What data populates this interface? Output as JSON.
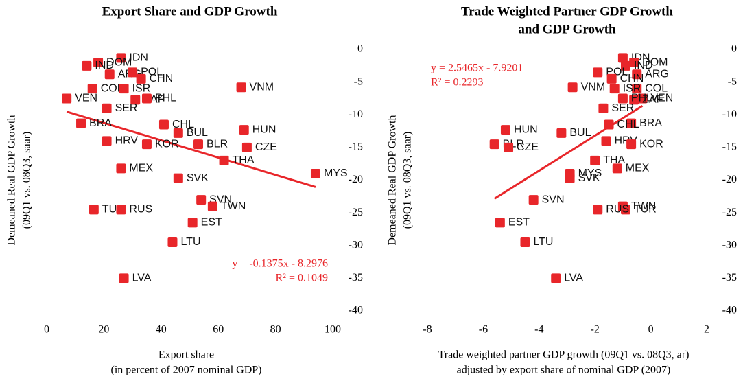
{
  "chart_data": [
    {
      "type": "scatter",
      "title": [
        "Export Share and GDP Growth"
      ],
      "xlabel": [
        "Export share",
        "(in percent of 2007 nominal GDP)"
      ],
      "ylabel": [
        "Demeaned Real GDP Growth",
        "(09Q1 vs. 08Q3, saar)"
      ],
      "annotation": [
        "y = -0.1375x - 8.2976",
        "R² = 0.1049"
      ],
      "color": "#e8262a",
      "trendline": true,
      "xlim": [
        0,
        100
      ],
      "xticks": [
        0,
        20,
        40,
        60,
        80,
        100
      ],
      "ylim": [
        -40,
        0
      ],
      "yticks": [
        0,
        -5,
        -10,
        -15,
        -20,
        -25,
        -30,
        -35,
        -40
      ],
      "labels": [
        "IDN",
        "DOM",
        "IND",
        "ARG",
        "POL",
        "CHN",
        "VEN",
        "COL",
        "ISR",
        "ZAF",
        "PHL",
        "SER",
        "BRA",
        "HRV",
        "KOR",
        "CHL",
        "BUL",
        "BLR",
        "HUN",
        "CZE",
        "VNM",
        "THA",
        "MYS",
        "MEX",
        "SVK",
        "SVN",
        "TWN",
        "TUR",
        "RUS",
        "EST",
        "LTU",
        "LVA"
      ],
      "x": [
        26,
        18,
        14,
        22,
        30,
        33,
        7,
        16,
        27,
        31,
        35,
        21,
        12,
        21,
        35,
        41,
        46,
        53,
        69,
        70,
        68,
        62,
        94,
        26,
        46,
        54,
        58,
        16.5,
        26,
        51,
        44,
        27
      ],
      "values": [
        -1.3,
        -2,
        -2.5,
        -3.8,
        -3.5,
        -4.5,
        -7.5,
        -6,
        -6,
        -7.7,
        -7.5,
        -9,
        -11.3,
        -14,
        -14.5,
        -11.5,
        -12.8,
        -14.5,
        -12.3,
        -15,
        -5.8,
        -17,
        -19,
        -18.2,
        -19.7,
        -23,
        -24,
        -24.5,
        -24.5,
        -26.5,
        -29.5,
        -35
      ]
    },
    {
      "type": "scatter",
      "title": [
        "Trade Weighted Partner GDP Growth",
        "and GDP Growth"
      ],
      "xlabel": [
        "Trade weighted partner GDP growth (09Q1 vs. 08Q3, ar)",
        "adjusted by export share of nominal GDP (2007)"
      ],
      "ylabel": [
        "Demeaned Real GDP Growth",
        "(09Q1 vs. 08Q3, saar)"
      ],
      "annotation": [
        "y = 2.5465x - 7.9201",
        "R² = 0.2293"
      ],
      "color": "#e8262a",
      "trendline": true,
      "xlim": [
        -8,
        2
      ],
      "xticks": [
        -8,
        -6,
        -4,
        -2,
        0,
        2
      ],
      "ylim": [
        -40,
        0
      ],
      "yticks": [
        0,
        -5,
        -10,
        -15,
        -20,
        -25,
        -30,
        -35,
        -40
      ],
      "labels": [
        "IDN",
        "DOM",
        "IND",
        "ARG",
        "POL",
        "CHN",
        "VEN",
        "COL",
        "ISR",
        "ZAF",
        "PHL",
        "SER",
        "BRA",
        "HRV",
        "KOR",
        "CHL",
        "BUL",
        "BLR",
        "HUN",
        "CZE",
        "VNM",
        "THA",
        "MYS",
        "MEX",
        "SVK",
        "SVN",
        "TWN",
        "TUR",
        "RUS",
        "EST",
        "LTU",
        "LVA"
      ],
      "x": [
        -1,
        -0.6,
        -0.9,
        -0.5,
        -1.9,
        -1.4,
        -0.3,
        -0.5,
        -1.3,
        -0.6,
        -1,
        -1.7,
        -0.7,
        -1.6,
        -0.7,
        -1.5,
        -3.2,
        -5.6,
        -5.2,
        -5.1,
        -2.8,
        -2,
        -2.9,
        -1.2,
        -2.9,
        -4.2,
        -1,
        -0.9,
        -1.9,
        -5.4,
        -4.5,
        -3.4
      ],
      "values": [
        -1.3,
        -2,
        -2.5,
        -3.8,
        -3.5,
        -4.5,
        -7.5,
        -6,
        -6,
        -7.7,
        -7.5,
        -9,
        -11.3,
        -14,
        -14.5,
        -11.5,
        -12.8,
        -14.5,
        -12.3,
        -15,
        -5.8,
        -17,
        -19,
        -18.2,
        -19.7,
        -23,
        -24,
        -24.5,
        -24.5,
        -26.5,
        -29.5,
        -35
      ]
    }
  ]
}
